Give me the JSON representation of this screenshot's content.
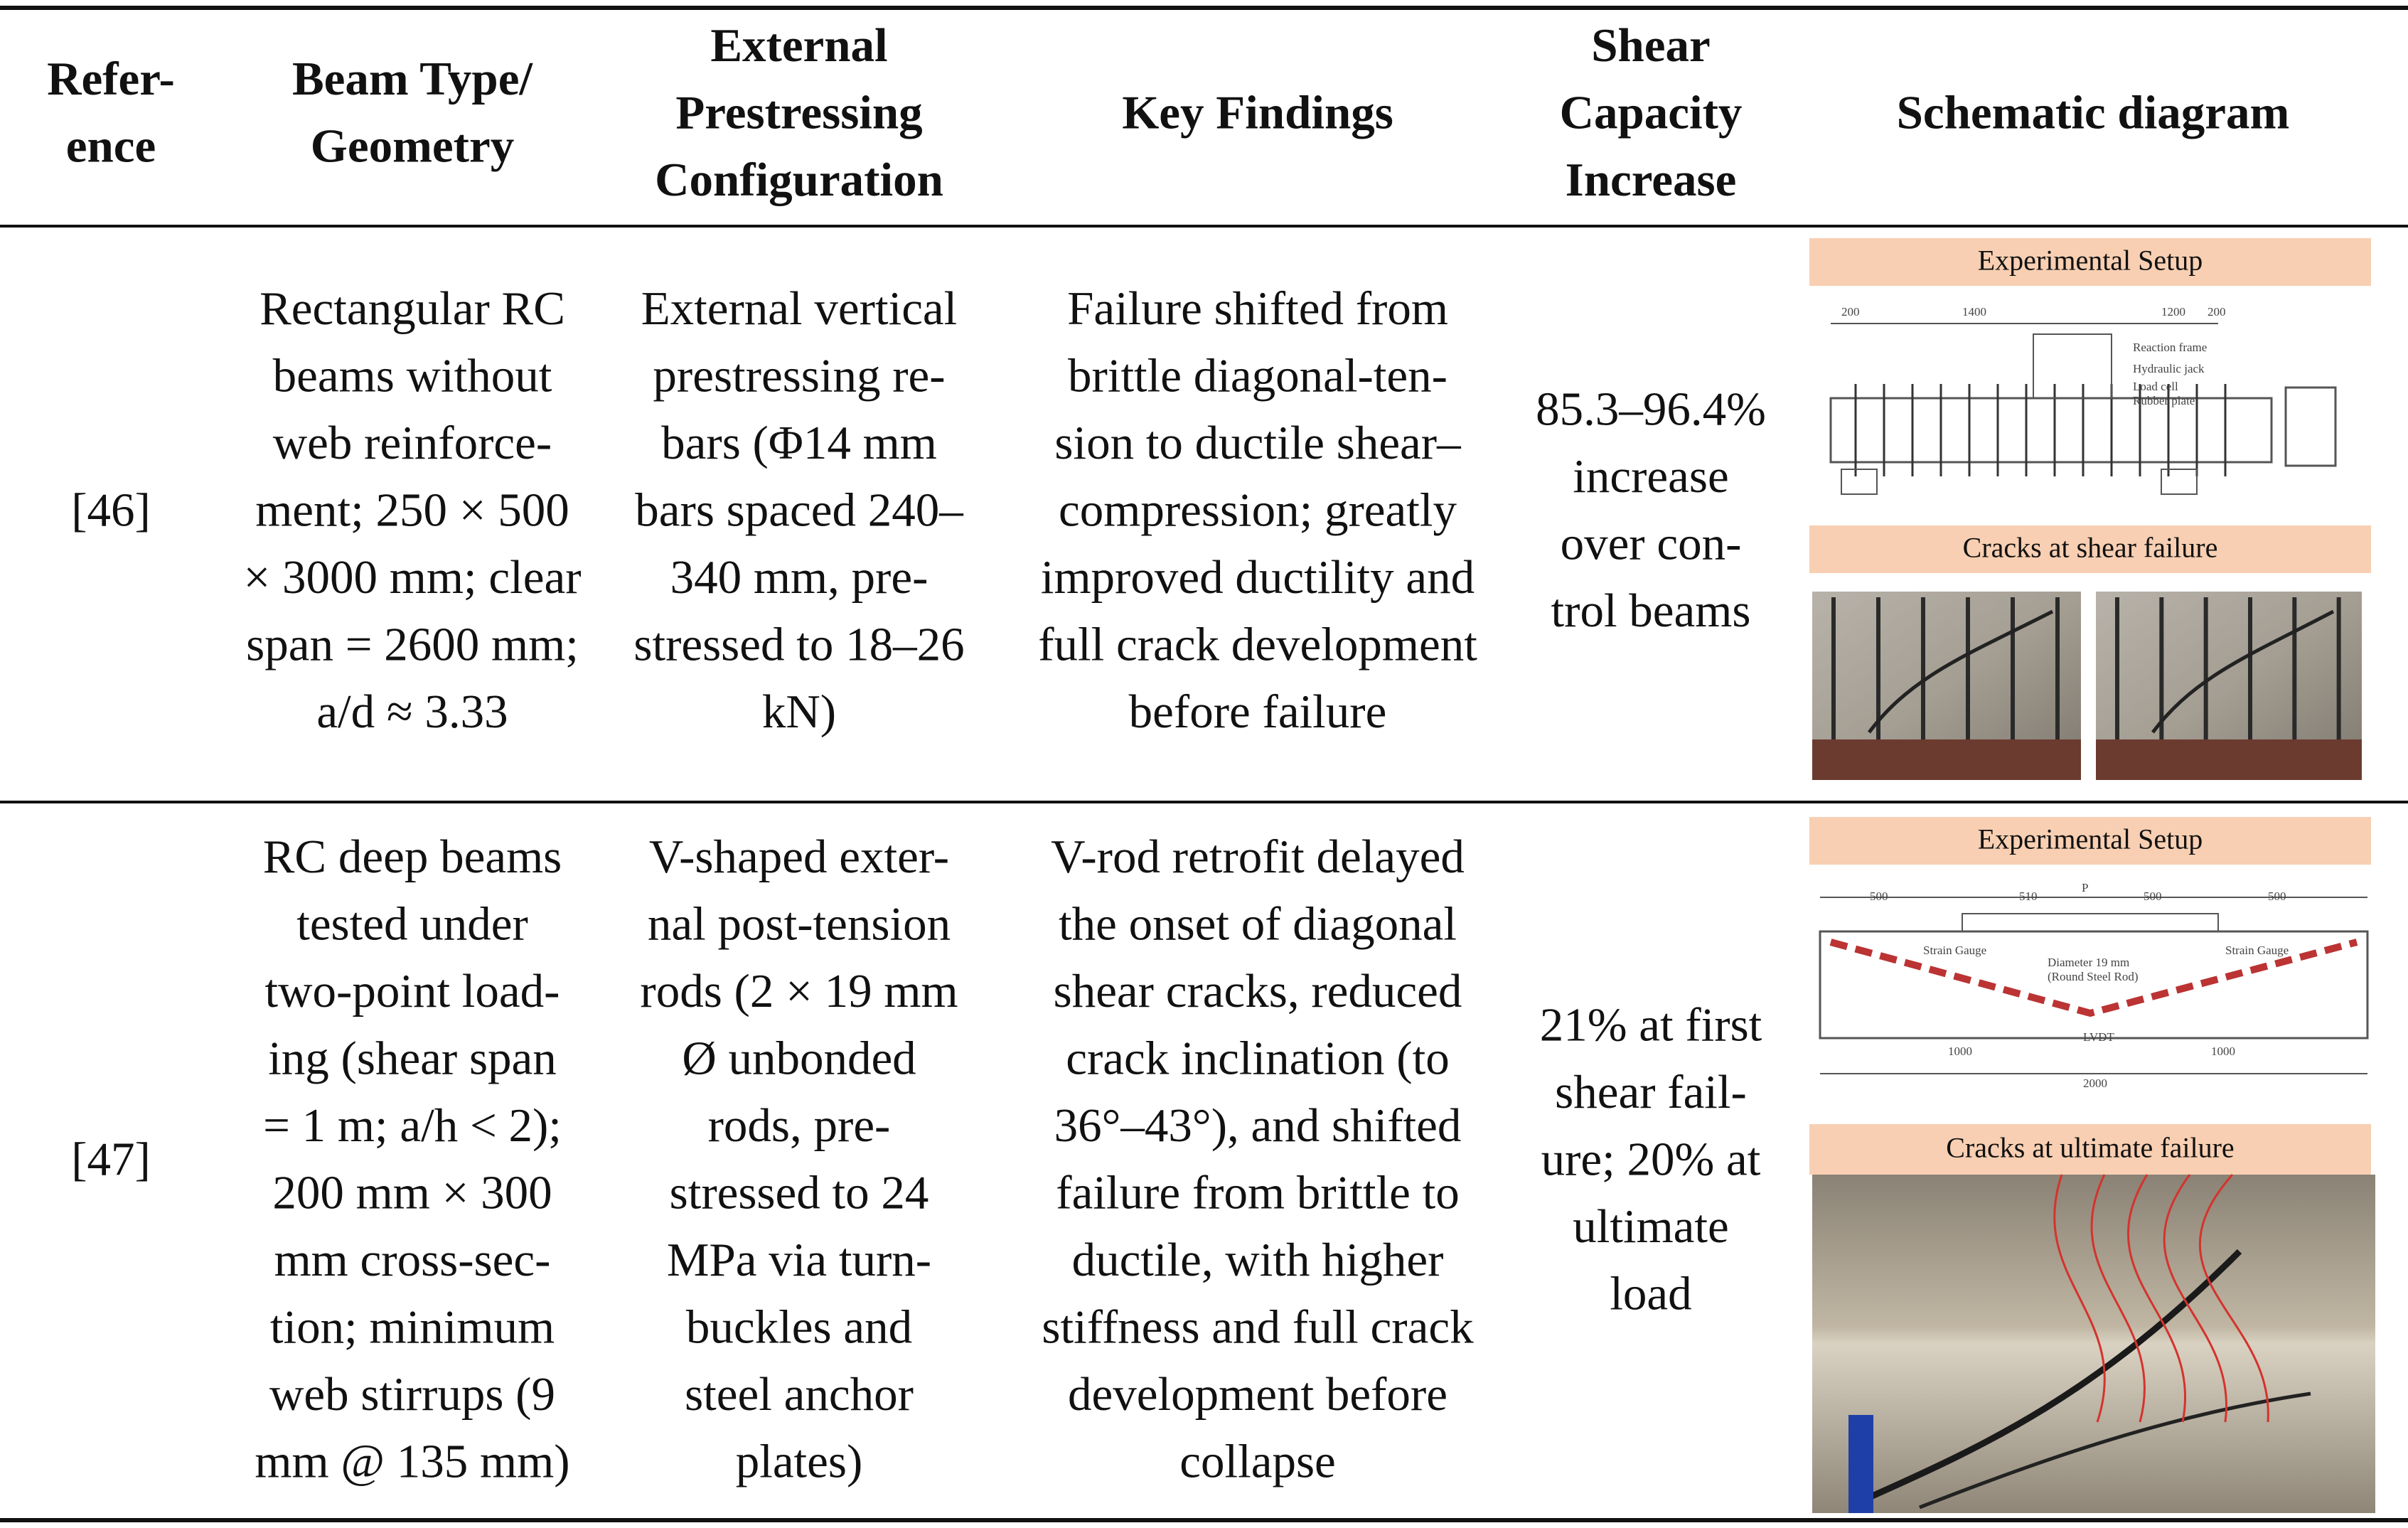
{
  "table": {
    "header": [
      [
        "Refer-",
        "ence"
      ],
      [
        "Beam Type/",
        "Geometry"
      ],
      [
        "External",
        "Prestressing",
        "Configuration"
      ],
      [
        "Key Findings"
      ],
      [
        "Shear",
        "Capacity",
        "Increase"
      ],
      [
        "Schematic diagram"
      ]
    ],
    "rows": [
      {
        "cells": [
          [
            "[46]"
          ],
          [
            "Rectangular RC",
            "beams without",
            "web reinforce-",
            "ment; 250 × 500",
            "× 3000 mm; clear",
            "span = 2600 mm;",
            "a/d ≈ 3.33"
          ],
          [
            "External vertical",
            "prestressing re-",
            "bars (Φ14 mm",
            "bars spaced 240–",
            "340 mm, pre-",
            "stressed to 18–26",
            "kN)"
          ],
          [
            "Failure shifted from",
            "brittle diagonal-ten-",
            "sion to ductile shear–",
            "compression; greatly",
            "improved ductility and",
            "full crack development",
            "before failure"
          ],
          [
            "85.3–96.4%",
            "increase",
            "over con-",
            "trol beams"
          ]
        ],
        "schematic": {
          "setup_title": "Experimental Setup",
          "setup_labels": [
            "200",
            "1400",
            "1200",
            "200",
            "Reaction frame",
            "Hydraulic jack",
            "Load cell",
            "Rubber plate"
          ],
          "photo_title": "Cracks at shear failure"
        }
      },
      {
        "cells": [
          [
            "[47]"
          ],
          [
            "RC deep beams",
            "tested under",
            "two-point load-",
            "ing (shear span",
            "= 1 m; a/h < 2);",
            "200 mm × 300",
            "mm cross-sec-",
            "tion; minimum",
            "web stirrups (9",
            "mm @ 135 mm)"
          ],
          [
            "V-shaped exter-",
            "nal post-tension",
            "rods (2 × 19 mm",
            "Ø unbonded",
            "rods, pre-",
            "stressed to 24",
            "MPa via turn-",
            "buckles and",
            "steel anchor",
            "plates)"
          ],
          [
            "V-rod retrofit delayed",
            "the onset of diagonal",
            "shear cracks, reduced",
            "crack inclination (to",
            "36°–43°), and shifted",
            "failure from brittle to",
            "ductile, with higher",
            "stiffness and full crack",
            "development before",
            "collapse"
          ],
          [
            "21% at first",
            "shear fail-",
            "ure; 20% at",
            "ultimate",
            "load"
          ]
        ],
        "schematic": {
          "setup_title": "Experimental Setup",
          "setup_labels": [
            "500",
            "510",
            "P",
            "500",
            "500",
            "Strain Gauge",
            "Strain Gauge",
            "Diameter 19 mm",
            "(Round Steel Rod)",
            "LVDT",
            "1000",
            "1000",
            "2000"
          ],
          "photo_title": "Cracks at ultimate failure"
        }
      }
    ]
  }
}
